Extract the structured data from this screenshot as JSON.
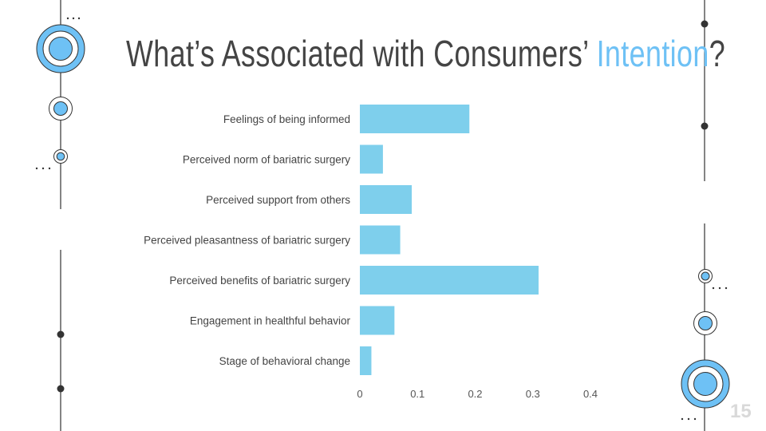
{
  "slide": {
    "title_pre": "What’s Associated with Consumers’ ",
    "title_highlight": "Intention",
    "title_post": "?",
    "page_number": "15"
  },
  "colors": {
    "accent": "#6ec1f5",
    "bar": "#7ecfec",
    "text": "#444444"
  },
  "chart_data": {
    "type": "bar",
    "orientation": "horizontal",
    "categories": [
      "Feelings of being informed",
      "Perceived norm of bariatric surgery",
      "Perceived support from others",
      "Perceived pleasantness of bariatric surgery",
      "Perceived benefits of bariatric surgery",
      "Engagement in healthful behavior",
      "Stage of behavioral change"
    ],
    "values": [
      0.19,
      0.04,
      0.09,
      0.07,
      0.31,
      0.06,
      0.02
    ],
    "xticks": [
      "0",
      "0.1",
      "0.2",
      "0.3",
      "0.4"
    ],
    "xlim": [
      0,
      0.4
    ],
    "grid": false,
    "title": "",
    "xlabel": "",
    "ylabel": ""
  }
}
